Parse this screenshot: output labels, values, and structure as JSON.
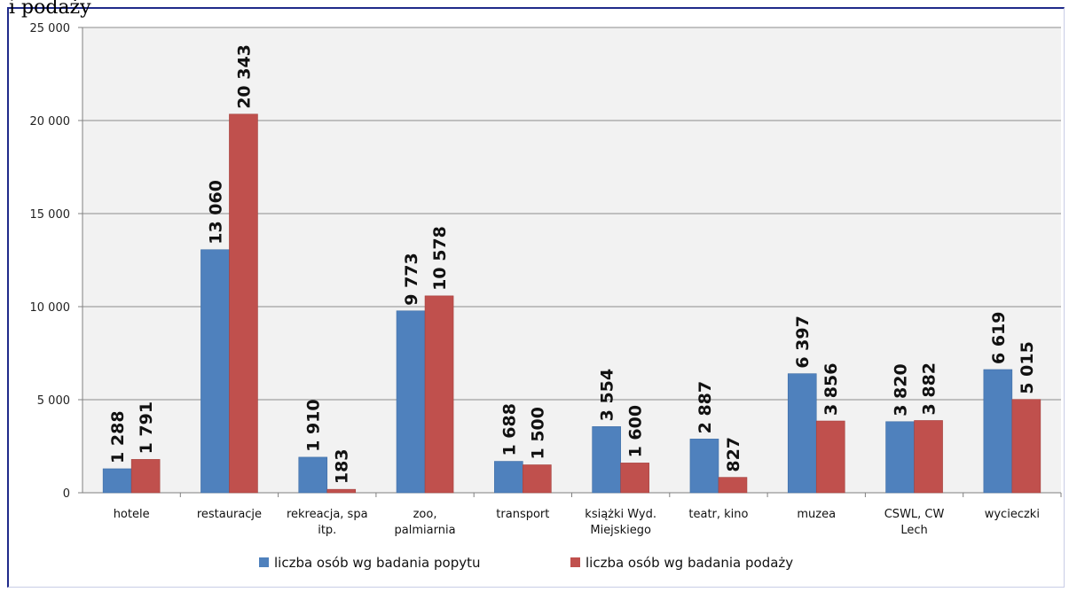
{
  "page": {
    "cut_title": "i podaży"
  },
  "colors": {
    "popyt": "#4f81bd",
    "podaz": "#c0504d",
    "grid": "#8c8c8c",
    "plot_bg": "#f2f2f2"
  },
  "chart_data": {
    "type": "bar",
    "title": "",
    "xlabel": "",
    "ylabel": "",
    "ylim": [
      0,
      25000
    ],
    "yticks": [
      0,
      5000,
      10000,
      15000,
      20000,
      25000
    ],
    "ytick_labels": [
      "0",
      "5 000",
      "10 000",
      "15 000",
      "20 000",
      "25 000"
    ],
    "grid": true,
    "legend_position": "bottom",
    "categories": [
      "hotele",
      "restauracje",
      "rekreacja, spa itp.",
      "zoo, palmiarnia",
      "transport",
      "książki Wyd. Miejskiego",
      "teatr, kino",
      "muzea",
      "CSWL, CW Lech",
      "wycieczki"
    ],
    "category_lines": [
      [
        "hotele"
      ],
      [
        "restauracje"
      ],
      [
        "rekreacja, spa",
        "itp."
      ],
      [
        "zoo,",
        "palmiarnia"
      ],
      [
        "transport"
      ],
      [
        "książki Wyd.",
        "Miejskiego"
      ],
      [
        "teatr, kino"
      ],
      [
        "muzea"
      ],
      [
        "CSWL, CW",
        "Lech"
      ],
      [
        "wycieczki"
      ]
    ],
    "series": [
      {
        "name": "liczba osób wg badania popytu",
        "color": "#4f81bd",
        "values": [
          1288,
          13060,
          1910,
          9773,
          1688,
          3554,
          2887,
          6397,
          3820,
          6619
        ],
        "labels": [
          "1 288",
          "13 060",
          "1 910",
          "9 773",
          "1 688",
          "3 554",
          "2 887",
          "6 397",
          "3 820",
          "6 619"
        ]
      },
      {
        "name": "liczba osób wg badania podaży",
        "color": "#c0504d",
        "values": [
          1791,
          20343,
          183,
          10578,
          1500,
          1600,
          827,
          3856,
          3882,
          5015
        ],
        "labels": [
          "1 791",
          "20 343",
          "183",
          "10 578",
          "1 500",
          "1 600",
          "827",
          "3 856",
          "3 882",
          "5 015"
        ]
      }
    ]
  }
}
